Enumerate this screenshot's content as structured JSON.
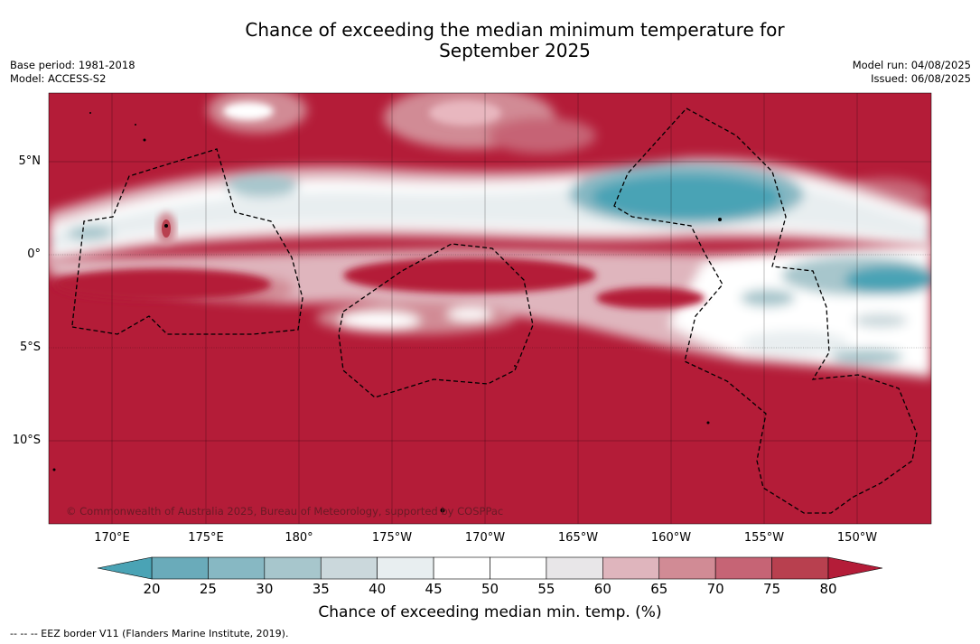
{
  "title_line1": "Chance of exceeding the median minimum temperature for",
  "title_line2": "September 2025",
  "base_period": "Base period: 1981-2018",
  "model": "Model: ACCESS-S2",
  "model_run": "Model run: 04/08/2025",
  "issued": "Issued: 06/08/2025",
  "lat_labels": [
    "5°N",
    "0°",
    "5°S",
    "10°S"
  ],
  "lon_labels": [
    "170°E",
    "175°E",
    "180°",
    "175°W",
    "170°W",
    "165°W",
    "160°W",
    "155°W",
    "150°W"
  ],
  "copyright": "© Commonwealth of Australia 2025, Bureau of Meteorology, supported by COSPPac",
  "colorbar": {
    "ticks": [
      "20",
      "25",
      "30",
      "35",
      "40",
      "45",
      "50",
      "55",
      "60",
      "65",
      "70",
      "75",
      "80"
    ],
    "colors": [
      "#4aa3b5",
      "#6aabba",
      "#87b8c3",
      "#a7c6cc",
      "#cbd8dc",
      "#e8eef0",
      "#ffffff",
      "#ffffff",
      "#e8e6e8",
      "#dfb5bd",
      "#d18b95",
      "#c66475",
      "#b8404f",
      "#b41c38"
    ],
    "label": "Chance of exceeding median min. temp. (%)"
  },
  "legend_eez": "-- -- -- EEZ border V11 (Flanders Marine Institute, 2019)."
}
